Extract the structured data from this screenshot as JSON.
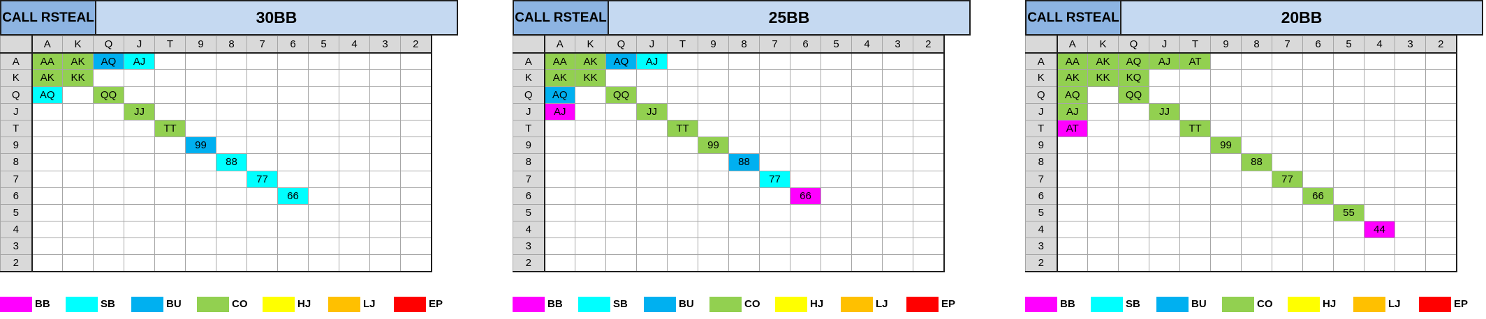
{
  "header_label": "CALL RSTEAL",
  "cols": [
    "A",
    "K",
    "Q",
    "J",
    "T",
    "9",
    "8",
    "7",
    "6",
    "5",
    "4",
    "3",
    "2"
  ],
  "rows": [
    "A",
    "K",
    "Q",
    "J",
    "T",
    "9",
    "8",
    "7",
    "6",
    "5",
    "4",
    "3",
    "2"
  ],
  "colors": {
    "BB": "#ff00ff",
    "SB": "#00ffff",
    "BU": "#00b0f0",
    "CO": "#92d050",
    "HJ": "#ffff00",
    "LJ": "#ffc000",
    "EP": "#ff0000"
  },
  "legend": [
    {
      "label": "BB",
      "color": "#ff00ff"
    },
    {
      "label": "SB",
      "color": "#00ffff"
    },
    {
      "label": "BU",
      "color": "#00b0f0"
    },
    {
      "label": "CO",
      "color": "#92d050"
    },
    {
      "label": "HJ",
      "color": "#ffff00"
    },
    {
      "label": "LJ",
      "color": "#ffc000"
    },
    {
      "label": "EP",
      "color": "#ff0000"
    }
  ],
  "panels": [
    {
      "title": "30BB",
      "cells": [
        {
          "r": 0,
          "c": 0,
          "t": "AA",
          "pos": "CO"
        },
        {
          "r": 0,
          "c": 1,
          "t": "AK",
          "pos": "CO"
        },
        {
          "r": 0,
          "c": 2,
          "t": "AQ",
          "pos": "BU"
        },
        {
          "r": 0,
          "c": 3,
          "t": "AJ",
          "pos": "SB"
        },
        {
          "r": 1,
          "c": 0,
          "t": "AK",
          "pos": "CO"
        },
        {
          "r": 1,
          "c": 1,
          "t": "KK",
          "pos": "CO"
        },
        {
          "r": 2,
          "c": 0,
          "t": "AQ",
          "pos": "SB"
        },
        {
          "r": 2,
          "c": 2,
          "t": "QQ",
          "pos": "CO"
        },
        {
          "r": 3,
          "c": 3,
          "t": "JJ",
          "pos": "CO"
        },
        {
          "r": 4,
          "c": 4,
          "t": "TT",
          "pos": "CO"
        },
        {
          "r": 5,
          "c": 5,
          "t": "99",
          "pos": "BU"
        },
        {
          "r": 6,
          "c": 6,
          "t": "88",
          "pos": "SB"
        },
        {
          "r": 7,
          "c": 7,
          "t": "77",
          "pos": "SB"
        },
        {
          "r": 8,
          "c": 8,
          "t": "66",
          "pos": "SB"
        }
      ]
    },
    {
      "title": "25BB",
      "cells": [
        {
          "r": 0,
          "c": 0,
          "t": "AA",
          "pos": "CO"
        },
        {
          "r": 0,
          "c": 1,
          "t": "AK",
          "pos": "CO"
        },
        {
          "r": 0,
          "c": 2,
          "t": "AQ",
          "pos": "BU"
        },
        {
          "r": 0,
          "c": 3,
          "t": "AJ",
          "pos": "SB"
        },
        {
          "r": 1,
          "c": 0,
          "t": "AK",
          "pos": "CO"
        },
        {
          "r": 1,
          "c": 1,
          "t": "KK",
          "pos": "CO"
        },
        {
          "r": 2,
          "c": 0,
          "t": "AQ",
          "pos": "BU"
        },
        {
          "r": 2,
          "c": 2,
          "t": "QQ",
          "pos": "CO"
        },
        {
          "r": 3,
          "c": 0,
          "t": "AJ",
          "pos": "BB"
        },
        {
          "r": 3,
          "c": 3,
          "t": "JJ",
          "pos": "CO"
        },
        {
          "r": 4,
          "c": 4,
          "t": "TT",
          "pos": "CO"
        },
        {
          "r": 5,
          "c": 5,
          "t": "99",
          "pos": "CO"
        },
        {
          "r": 6,
          "c": 6,
          "t": "88",
          "pos": "BU"
        },
        {
          "r": 7,
          "c": 7,
          "t": "77",
          "pos": "SB"
        },
        {
          "r": 8,
          "c": 8,
          "t": "66",
          "pos": "BB"
        }
      ]
    },
    {
      "title": "20BB",
      "cells": [
        {
          "r": 0,
          "c": 0,
          "t": "AA",
          "pos": "CO"
        },
        {
          "r": 0,
          "c": 1,
          "t": "AK",
          "pos": "CO"
        },
        {
          "r": 0,
          "c": 2,
          "t": "AQ",
          "pos": "CO"
        },
        {
          "r": 0,
          "c": 3,
          "t": "AJ",
          "pos": "CO"
        },
        {
          "r": 0,
          "c": 4,
          "t": "AT",
          "pos": "CO"
        },
        {
          "r": 1,
          "c": 0,
          "t": "AK",
          "pos": "CO"
        },
        {
          "r": 1,
          "c": 1,
          "t": "KK",
          "pos": "CO"
        },
        {
          "r": 1,
          "c": 2,
          "t": "KQ",
          "pos": "CO"
        },
        {
          "r": 2,
          "c": 0,
          "t": "AQ",
          "pos": "CO"
        },
        {
          "r": 2,
          "c": 2,
          "t": "QQ",
          "pos": "CO"
        },
        {
          "r": 3,
          "c": 0,
          "t": "AJ",
          "pos": "CO"
        },
        {
          "r": 3,
          "c": 3,
          "t": "JJ",
          "pos": "CO"
        },
        {
          "r": 4,
          "c": 0,
          "t": "AT",
          "pos": "BB"
        },
        {
          "r": 4,
          "c": 4,
          "t": "TT",
          "pos": "CO"
        },
        {
          "r": 5,
          "c": 5,
          "t": "99",
          "pos": "CO"
        },
        {
          "r": 6,
          "c": 6,
          "t": "88",
          "pos": "CO"
        },
        {
          "r": 7,
          "c": 7,
          "t": "77",
          "pos": "CO"
        },
        {
          "r": 8,
          "c": 8,
          "t": "66",
          "pos": "CO"
        },
        {
          "r": 9,
          "c": 9,
          "t": "55",
          "pos": "CO"
        },
        {
          "r": 10,
          "c": 10,
          "t": "44",
          "pos": "BB"
        }
      ]
    }
  ]
}
